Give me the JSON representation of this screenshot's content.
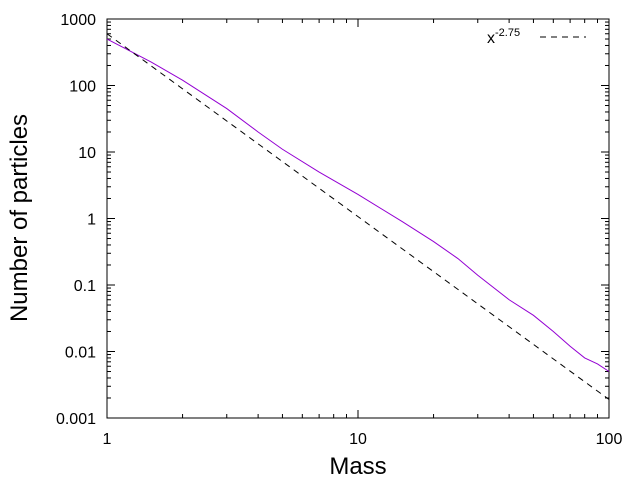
{
  "chart_data": {
    "type": "line",
    "xlabel": "Mass",
    "ylabel": "Number of particles",
    "xscale": "log",
    "yscale": "log",
    "xlim": [
      1,
      100
    ],
    "ylim": [
      0.001,
      1000
    ],
    "x_ticks": [
      1,
      10,
      100
    ],
    "x_tick_labels": [
      "1",
      "10",
      "100"
    ],
    "y_ticks": [
      0.001,
      0.01,
      0.1,
      1,
      10,
      100,
      1000
    ],
    "y_tick_labels": [
      "0.001",
      "0.01",
      "0.1",
      "1",
      "10",
      "100",
      "1000"
    ],
    "grid": false,
    "legend_position": "top-right",
    "legend": {
      "base": "x",
      "exponent": "-2.75"
    },
    "series": [
      {
        "style": "solid",
        "color": "#9400d3",
        "x": [
          1,
          1.5,
          2,
          3,
          4,
          5,
          7,
          10,
          15,
          20,
          25,
          30,
          40,
          50,
          60,
          70,
          80,
          90,
          100
        ],
        "y": [
          500,
          225,
          120,
          45,
          20,
          11,
          5,
          2.3,
          0.9,
          0.45,
          0.25,
          0.14,
          0.06,
          0.035,
          0.02,
          0.012,
          0.008,
          0.0065,
          0.005
        ]
      },
      {
        "name": "x^-2.75",
        "style": "dashed",
        "color": "#000000",
        "x": [
          1,
          100
        ],
        "y": [
          600,
          0.0019
        ]
      }
    ]
  }
}
